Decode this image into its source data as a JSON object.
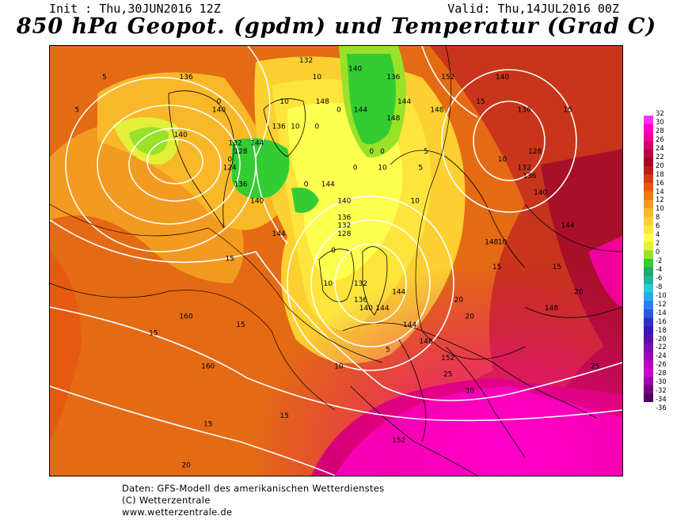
{
  "header": {
    "init": "Init : Thu,30JUN2016 12Z",
    "valid": "Valid: Thu,14JUL2016 00Z",
    "title": "850 hPa Geopot. (gpdm) und Temperatur (Grad C)"
  },
  "legend": {
    "labels": [
      "32",
      "30",
      "28",
      "26",
      "24",
      "22",
      "20",
      "18",
      "16",
      "14",
      "12",
      "10",
      "8",
      "6",
      "4",
      "2",
      "0",
      "-2",
      "-4",
      "-6",
      "-8",
      "-10",
      "-12",
      "-14",
      "-16",
      "-18",
      "-20",
      "-22",
      "-24",
      "-26",
      "-28",
      "-30",
      "-32",
      "-34",
      "-36"
    ],
    "colors": [
      "#ff33ff",
      "#ff00cc",
      "#ee0099",
      "#d4006e",
      "#bb0044",
      "#a80022",
      "#c21a1a",
      "#d83a10",
      "#e55a10",
      "#ee7a10",
      "#f39a20",
      "#f8b828",
      "#fbd030",
      "#fde53c",
      "#ffff50",
      "#e2f03a",
      "#9ae22a",
      "#33cc33",
      "#22aa66",
      "#20b5a0",
      "#30c8d8",
      "#2aa8f0",
      "#2a80f0",
      "#2a58e0",
      "#2a30c8",
      "#3818b8",
      "#5a10b0",
      "#7a10b0",
      "#9a00b8",
      "#b800c0",
      "#cc00cc",
      "#a000a8",
      "#7a0080",
      "#550060"
    ]
  },
  "map": {
    "contour_labels": [
      {
        "text": "136",
        "x": -30,
        "y": 66
      },
      {
        "text": "132",
        "x": -8,
        "y": 68
      },
      {
        "text": "136",
        "x": 8,
        "y": 66
      },
      {
        "text": "140",
        "x": -24,
        "y": 62
      },
      {
        "text": "140",
        "x": -31,
        "y": 59
      },
      {
        "text": "144",
        "x": -17,
        "y": 58
      },
      {
        "text": "136",
        "x": -13,
        "y": 60
      },
      {
        "text": "132",
        "x": -21,
        "y": 58
      },
      {
        "text": "128",
        "x": -20,
        "y": 57
      },
      {
        "text": "124",
        "x": -22,
        "y": 55
      },
      {
        "text": "136",
        "x": -20,
        "y": 53
      },
      {
        "text": "140",
        "x": -17,
        "y": 51
      },
      {
        "text": "144",
        "x": -13,
        "y": 47
      },
      {
        "text": "148",
        "x": -5,
        "y": 63
      },
      {
        "text": "144",
        "x": 2,
        "y": 62
      },
      {
        "text": "140",
        "x": 1,
        "y": 67
      },
      {
        "text": "148",
        "x": 8,
        "y": 61
      },
      {
        "text": "144",
        "x": 10,
        "y": 63
      },
      {
        "text": "152",
        "x": 18,
        "y": 66
      },
      {
        "text": "148",
        "x": 16,
        "y": 62
      },
      {
        "text": "140",
        "x": 28,
        "y": 66
      },
      {
        "text": "136",
        "x": 32,
        "y": 62
      },
      {
        "text": "128",
        "x": 34,
        "y": 57
      },
      {
        "text": "132",
        "x": 32,
        "y": 55
      },
      {
        "text": "136",
        "x": 33,
        "y": 54
      },
      {
        "text": "140",
        "x": 35,
        "y": 52
      },
      {
        "text": "144",
        "x": 40,
        "y": 48
      },
      {
        "text": "148",
        "x": 26,
        "y": 46
      },
      {
        "text": "144",
        "x": -4,
        "y": 53
      },
      {
        "text": "140",
        "x": -1,
        "y": 51
      },
      {
        "text": "136",
        "x": -1,
        "y": 49
      },
      {
        "text": "132",
        "x": -1,
        "y": 48
      },
      {
        "text": "128",
        "x": -1,
        "y": 47
      },
      {
        "text": "132",
        "x": 2,
        "y": 41
      },
      {
        "text": "136",
        "x": 2,
        "y": 39
      },
      {
        "text": "140",
        "x": 3,
        "y": 38
      },
      {
        "text": "144",
        "x": 9,
        "y": 40
      },
      {
        "text": "144",
        "x": 6,
        "y": 38
      },
      {
        "text": "144",
        "x": 11,
        "y": 36
      },
      {
        "text": "148",
        "x": 14,
        "y": 34
      },
      {
        "text": "148",
        "x": 37,
        "y": 38
      },
      {
        "text": "152",
        "x": 18,
        "y": 32
      },
      {
        "text": "160",
        "x": -30,
        "y": 37
      },
      {
        "text": "160",
        "x": -26,
        "y": 31
      },
      {
        "text": "152",
        "x": 9,
        "y": 22
      },
      {
        "text": "0",
        "x": -24,
        "y": 63
      },
      {
        "text": "0",
        "x": -22,
        "y": 56
      },
      {
        "text": "0",
        "x": -6,
        "y": 60
      },
      {
        "text": "0",
        "x": -2,
        "y": 62
      },
      {
        "text": "0",
        "x": 6,
        "y": 57
      },
      {
        "text": "0",
        "x": 4,
        "y": 57
      },
      {
        "text": "0",
        "x": 1,
        "y": 55
      },
      {
        "text": "0",
        "x": -8,
        "y": 53
      },
      {
        "text": "0",
        "x": -3,
        "y": 45
      },
      {
        "text": "5",
        "x": -45,
        "y": 66
      },
      {
        "text": "5",
        "x": -50,
        "y": 62
      },
      {
        "text": "5",
        "x": 14,
        "y": 57
      },
      {
        "text": "5",
        "x": 13,
        "y": 55
      },
      {
        "text": "5",
        "x": 7,
        "y": 33
      },
      {
        "text": "10",
        "x": -6,
        "y": 66
      },
      {
        "text": "10",
        "x": -12,
        "y": 63
      },
      {
        "text": "10",
        "x": -10,
        "y": 60
      },
      {
        "text": "10",
        "x": 6,
        "y": 55
      },
      {
        "text": "10",
        "x": 12,
        "y": 51
      },
      {
        "text": "10",
        "x": 28,
        "y": 56
      },
      {
        "text": "10",
        "x": 28,
        "y": 46
      },
      {
        "text": "10",
        "x": -4,
        "y": 41
      },
      {
        "text": "10",
        "x": -2,
        "y": 31
      },
      {
        "text": "15",
        "x": 24,
        "y": 63
      },
      {
        "text": "15",
        "x": 40,
        "y": 62
      },
      {
        "text": "15",
        "x": -22,
        "y": 44
      },
      {
        "text": "15",
        "x": -36,
        "y": 35
      },
      {
        "text": "15",
        "x": -20,
        "y": 36
      },
      {
        "text": "15",
        "x": 27,
        "y": 43
      },
      {
        "text": "15",
        "x": 38,
        "y": 43
      },
      {
        "text": "15",
        "x": -26,
        "y": 24
      },
      {
        "text": "15",
        "x": -12,
        "y": 25
      },
      {
        "text": "20",
        "x": 20,
        "y": 39
      },
      {
        "text": "20",
        "x": 22,
        "y": 37
      },
      {
        "text": "20",
        "x": 42,
        "y": 40
      },
      {
        "text": "20",
        "x": -30,
        "y": 19
      },
      {
        "text": "25",
        "x": 18,
        "y": 30
      },
      {
        "text": "25",
        "x": 45,
        "y": 31
      },
      {
        "text": "30",
        "x": 22,
        "y": 28
      }
    ]
  },
  "footer": {
    "line1": "Daten: GFS-Modell des amerikanischen Wetterdienstes",
    "line2": "(C) Wetterzentrale",
    "line3": "www.wetterzentrale.de"
  }
}
